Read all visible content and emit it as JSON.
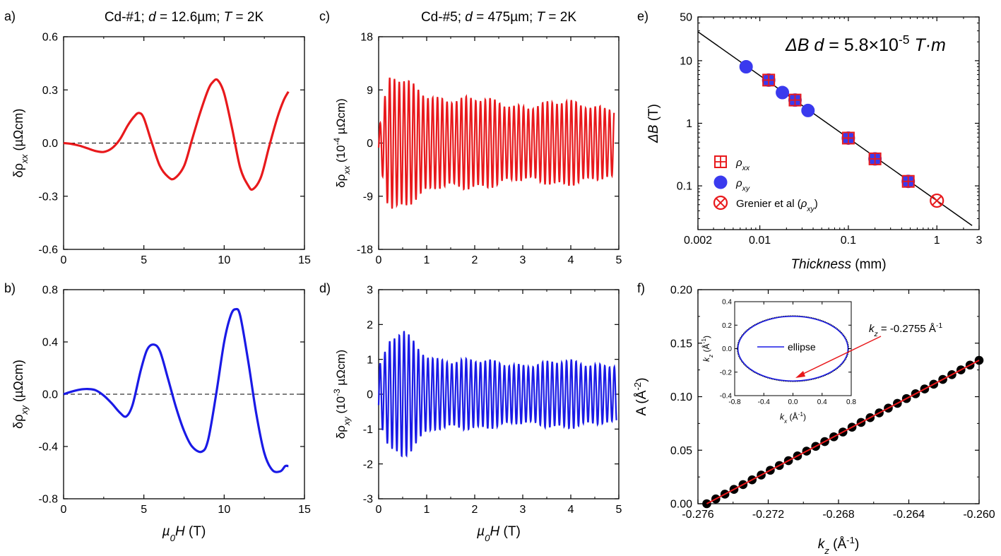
{
  "figure": {
    "panel_labels": [
      "a)",
      "b)",
      "c)",
      "d)",
      "e)",
      "f)"
    ],
    "colors": {
      "red": "#e8191c",
      "blue": "#1a1ae6",
      "black": "#000000",
      "marker_blue": "#3a3aee"
    }
  },
  "chart_data": [
    {
      "id": "a",
      "type": "line",
      "title": "Cd-#1; d = 12.6µm; T = 2K",
      "title_parts": [
        "Cd-#1; ",
        "d",
        " = 12.6µm; ",
        "T",
        " = 2K"
      ],
      "xlabel": "",
      "ylabel_parts": [
        "δρ",
        "xx",
        " (µΩcm)"
      ],
      "xlim": [
        0,
        15
      ],
      "ylim": [
        -0.6,
        0.6
      ],
      "xticks": [
        0,
        5,
        10,
        15
      ],
      "xticklabels": [
        "0",
        "5",
        "10",
        "15"
      ],
      "yticks": [
        -0.6,
        -0.3,
        0.0,
        0.3,
        0.6
      ],
      "yticklabels": [
        "-0.6",
        "-0.3",
        "0.0",
        "0.3",
        "0.6"
      ],
      "zero_line": true,
      "color": "#e8191c",
      "series": [
        {
          "name": "δρxx",
          "x": [
            0,
            0.5,
            1,
            1.5,
            2,
            2.5,
            3,
            3.5,
            4,
            4.4,
            4.7,
            5.0,
            5.5,
            6.0,
            6.5,
            6.9,
            7.5,
            8.0,
            8.5,
            9.0,
            9.3,
            9.6,
            10.0,
            10.5,
            11.0,
            11.5,
            11.8,
            12.3,
            12.8,
            13.3,
            13.7,
            14.0
          ],
          "y": [
            0,
            -0.005,
            -0.015,
            -0.03,
            -0.045,
            -0.05,
            -0.03,
            0.02,
            0.1,
            0.15,
            0.17,
            0.14,
            0.0,
            -0.13,
            -0.19,
            -0.2,
            -0.13,
            0.02,
            0.17,
            0.3,
            0.345,
            0.355,
            0.28,
            0.08,
            -0.14,
            -0.24,
            -0.26,
            -0.19,
            -0.02,
            0.14,
            0.24,
            0.29
          ]
        }
      ]
    },
    {
      "id": "b",
      "type": "line",
      "title": "",
      "xlabel_parts": [
        "µ",
        "0",
        "H",
        " (T)"
      ],
      "ylabel_parts": [
        "δρ",
        "xy",
        " (µΩcm)"
      ],
      "xlim": [
        0,
        15
      ],
      "ylim": [
        -0.8,
        0.8
      ],
      "xticks": [
        0,
        5,
        10,
        15
      ],
      "xticklabels": [
        "0",
        "5",
        "10",
        "15"
      ],
      "yticks": [
        -0.8,
        -0.4,
        0.0,
        0.4,
        0.8
      ],
      "yticklabels": [
        "-0.8",
        "-0.4",
        "0.0",
        "0.4",
        "0.8"
      ],
      "zero_line": true,
      "color": "#1a1ae6",
      "series": [
        {
          "name": "δρxy",
          "x": [
            0,
            0.5,
            1,
            1.5,
            2,
            2.5,
            3,
            3.5,
            3.9,
            4.3,
            4.8,
            5.2,
            5.6,
            6.0,
            6.5,
            7.0,
            7.5,
            8.0,
            8.6,
            9.0,
            9.5,
            10.0,
            10.4,
            10.7,
            11.0,
            11.5,
            12.0,
            12.5,
            13.0,
            13.5,
            13.8,
            14.0
          ],
          "y": [
            0,
            0.02,
            0.035,
            0.04,
            0.03,
            -0.01,
            -0.07,
            -0.14,
            -0.17,
            -0.08,
            0.18,
            0.34,
            0.38,
            0.33,
            0.12,
            -0.1,
            -0.28,
            -0.4,
            -0.44,
            -0.35,
            0.0,
            0.4,
            0.6,
            0.65,
            0.6,
            0.25,
            -0.15,
            -0.45,
            -0.58,
            -0.59,
            -0.55,
            -0.55
          ]
        }
      ]
    },
    {
      "id": "c",
      "type": "line",
      "title": "Cd-#5; d = 475µm; T = 2K",
      "title_parts": [
        "Cd-#5; ",
        "d",
        " = 475µm; ",
        "T",
        " = 2K"
      ],
      "xlabel": "",
      "ylabel_parts": [
        "δρ",
        "xx",
        " (10",
        "-4",
        " µΩcm)"
      ],
      "xlim": [
        0,
        5
      ],
      "ylim": [
        -18,
        18
      ],
      "xticks": [
        0,
        1,
        2,
        3,
        4,
        5
      ],
      "xticklabels": [
        "0",
        "1",
        "2",
        "3",
        "4",
        "5"
      ],
      "yticks": [
        -18,
        -9,
        0,
        9,
        18
      ],
      "yticklabels": [
        "-18",
        "-9",
        "0",
        "9",
        "18"
      ],
      "zero_line": false,
      "color": "#e8191c",
      "oscillation": {
        "x_start": 0.0,
        "x_end": 4.9,
        "period": 0.0995,
        "envelope_x": [
          0.0,
          0.1,
          0.2,
          0.3,
          0.5,
          0.8,
          1.2,
          2.0,
          3.0,
          4.0,
          4.9
        ],
        "envelope_y": [
          2,
          6,
          10,
          10.5,
          10,
          9,
          8,
          7,
          6.5,
          6.5,
          6.3
        ]
      }
    },
    {
      "id": "d",
      "type": "line",
      "title": "",
      "xlabel_parts": [
        "µ",
        "0",
        "H",
        " (T)"
      ],
      "ylabel_parts": [
        "δρ",
        "xy",
        " (10",
        "-3",
        " µΩcm)"
      ],
      "xlim": [
        0,
        5
      ],
      "ylim": [
        -3,
        3
      ],
      "xticks": [
        0,
        1,
        2,
        3,
        4,
        5
      ],
      "xticklabels": [
        "0",
        "1",
        "2",
        "3",
        "4",
        "5"
      ],
      "yticks": [
        -3,
        -2,
        -1,
        0,
        1,
        2,
        3
      ],
      "yticklabels": [
        "-3",
        "-2",
        "-1",
        "0",
        "1",
        "2",
        "3"
      ],
      "zero_line": false,
      "color": "#1a1ae6",
      "oscillation": {
        "x_start": 0.0,
        "x_end": 4.95,
        "period": 0.0995,
        "envelope_x": [
          0.0,
          0.1,
          0.2,
          0.3,
          0.5,
          0.8,
          1.2,
          2.0,
          3.0,
          4.0,
          4.9
        ],
        "envelope_y": [
          0.8,
          1.0,
          1.35,
          1.5,
          1.75,
          1.3,
          1.05,
          0.9,
          0.88,
          0.88,
          0.88
        ]
      }
    },
    {
      "id": "e",
      "type": "scatter",
      "xscale": "log",
      "yscale": "log",
      "xlabel_parts": [
        "Thickness",
        " (mm)"
      ],
      "ylabel_parts": [
        "ΔB",
        " (T)"
      ],
      "xlim": [
        0.002,
        3
      ],
      "ylim": [
        0.02,
        50
      ],
      "xticks": [
        0.002,
        0.01,
        0.1,
        1,
        3
      ],
      "xticklabels": [
        "0.002",
        "0.01",
        "0.1",
        "1",
        "3"
      ],
      "yticks": [
        0.1,
        1,
        10,
        50
      ],
      "yticklabels": [
        "0.1",
        "1",
        "10",
        "50"
      ],
      "annotation_parts": [
        "ΔB d",
        " = 5.8×10",
        "-5",
        " T·m"
      ],
      "fit_line": {
        "x": [
          0.002,
          2.5
        ],
        "y": [
          29.0,
          0.0232
        ]
      },
      "series": [
        {
          "name": "ρxx",
          "legend_parts": [
            "ρ",
            "xx"
          ],
          "marker": "square-plus",
          "color": "#e8191c",
          "x": [
            0.0126,
            0.025,
            0.1,
            0.2,
            0.475
          ],
          "y": [
            4.9,
            2.35,
            0.58,
            0.27,
            0.118
          ]
        },
        {
          "name": "ρxy",
          "legend_parts": [
            "ρ",
            "xy"
          ],
          "marker": "circle",
          "color": "#3a3aee",
          "x": [
            0.007,
            0.0126,
            0.018,
            0.025,
            0.035,
            0.1,
            0.2,
            0.475
          ],
          "y": [
            8.0,
            4.9,
            3.1,
            2.35,
            1.6,
            0.58,
            0.27,
            0.118
          ]
        },
        {
          "name": "Grenier et al (ρxy)",
          "legend_parts": [
            "Grenier et al (",
            "ρ",
            "xy",
            ")"
          ],
          "marker": "circle-x",
          "color": "#e8191c",
          "x": [
            1.0
          ],
          "y": [
            0.058
          ]
        }
      ],
      "legend": "bottom-left"
    },
    {
      "id": "f",
      "type": "scatter",
      "xlabel_parts": [
        "k",
        "z",
        " (Å",
        "-1",
        ")"
      ],
      "ylabel_parts": [
        "A (Å",
        "-2",
        ")"
      ],
      "xlim": [
        -0.276,
        -0.26
      ],
      "ylim": [
        0.0,
        0.2
      ],
      "xticks": [
        -0.276,
        -0.272,
        -0.268,
        -0.264,
        -0.26
      ],
      "xticklabels": [
        "-0.276",
        "-0.272",
        "-0.268",
        "-0.264",
        "-0.260"
      ],
      "yticks": [
        0.0,
        0.05,
        0.1,
        0.15,
        0.2
      ],
      "yticklabels": [
        "0.00",
        "0.05",
        "0.10",
        "0.15",
        "0.20"
      ],
      "points": {
        "x_start": -0.2755,
        "x_end": -0.26,
        "count": 31,
        "y_start": 0.0,
        "y_end": 0.134
      },
      "fit_line": {
        "x": [
          -0.2755,
          -0.26
        ],
        "y": [
          0.0,
          0.134
        ],
        "color": "#e8191c"
      },
      "annotation_parts": [
        "k",
        "z",
        " = -0.2755 Å",
        "-1"
      ],
      "inset": {
        "xlabel_parts": [
          "k",
          "x",
          " (Å",
          "-1",
          ")"
        ],
        "ylabel_parts": [
          "k",
          "z",
          " (Å",
          "-1",
          ")"
        ],
        "xlim": [
          -0.8,
          0.8
        ],
        "ylim": [
          -0.4,
          0.4
        ],
        "xticks": [
          -0.8,
          -0.4,
          0.0,
          0.4,
          0.8
        ],
        "xticklabels": [
          "-0.8",
          "-0.4",
          "0.0",
          "0.4",
          "0.8"
        ],
        "yticks": [
          -0.4,
          -0.2,
          0.0,
          0.2,
          0.4
        ],
        "yticklabels": [
          "-0.4",
          "-0.2",
          "0.0",
          "0.2",
          "0.4"
        ],
        "ellipse": {
          "rx": 0.755,
          "rz": 0.275
        },
        "legend_label": "ellipse"
      }
    }
  ]
}
